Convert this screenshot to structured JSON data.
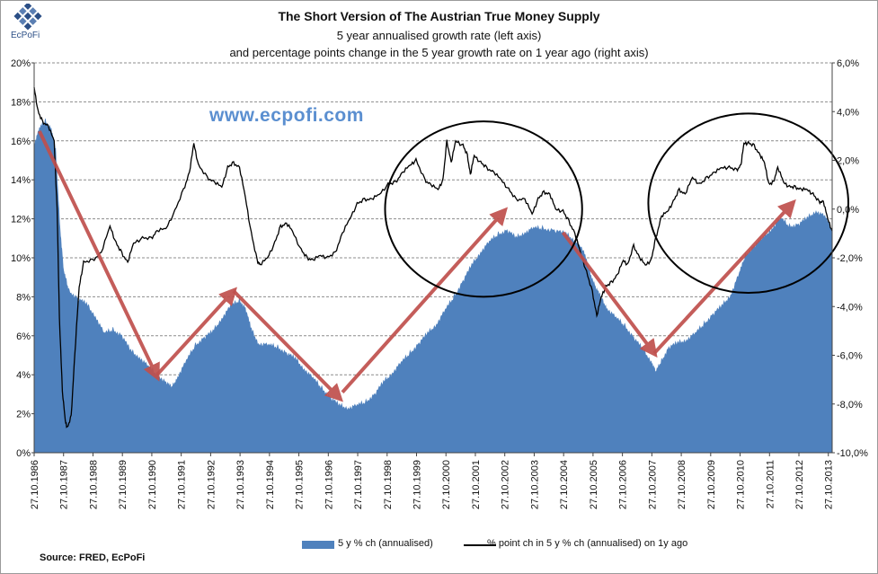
{
  "header": {
    "logo_text": "EcPoFi",
    "watermark": "www.ecpofi.com",
    "source": "Source: FRED, EcPoFi"
  },
  "chart_data": {
    "type": "area",
    "title": "The Short Version of The Austrian True Money Supply",
    "subtitle1": "5 year annualised growth rate (left axis)",
    "subtitle2": "and percentage points change in the 5 year growth rate on 1 year ago (right axis)",
    "x_labels": [
      "27.10.1986",
      "27.10.1987",
      "27.10.1988",
      "27.10.1989",
      "27.10.1990",
      "27.10.1991",
      "27.10.1992",
      "27.10.1993",
      "27.10.1994",
      "27.10.1995",
      "27.10.1996",
      "27.10.1997",
      "27.10.1998",
      "27.10.1999",
      "27.10.2000",
      "27.10.2001",
      "27.10.2002",
      "27.10.2003",
      "27.10.2004",
      "27.10.2005",
      "27.10.2006",
      "27.10.2007",
      "27.10.2008",
      "27.10.2009",
      "27.10.2010",
      "27.10.2011",
      "27.10.2012",
      "27.10.2013"
    ],
    "xlim": [
      1986.82,
      2013.95
    ],
    "y_left": {
      "min": 0,
      "max": 20,
      "step": 2,
      "unit": "%",
      "ticks": [
        "0%",
        "2%",
        "4%",
        "6%",
        "8%",
        "10%",
        "12%",
        "14%",
        "16%",
        "18%",
        "20%"
      ]
    },
    "y_right": {
      "min": -10,
      "max": 6,
      "step": 2,
      "unit": "%",
      "ticks": [
        "-10,0%",
        "-8,0%",
        "-6,0%",
        "-4,0%",
        "-2,0%",
        "0,0%",
        "2,0%",
        "4,0%",
        "6,0%"
      ]
    },
    "grid": true,
    "legend_position": "bottom",
    "series": [
      {
        "name": "5 y % ch (annualised)",
        "axis": "left",
        "kind": "area",
        "color": "#4f81bd",
        "points": [
          [
            1986.82,
            15.8
          ],
          [
            1987.0,
            16.6
          ],
          [
            1987.2,
            17.0
          ],
          [
            1987.4,
            16.6
          ],
          [
            1987.55,
            15.5
          ],
          [
            1987.7,
            11.5
          ],
          [
            1987.82,
            9.3
          ],
          [
            1988.0,
            8.3
          ],
          [
            1988.3,
            7.9
          ],
          [
            1988.6,
            7.6
          ],
          [
            1988.9,
            7.0
          ],
          [
            1989.2,
            6.1
          ],
          [
            1989.5,
            6.3
          ],
          [
            1989.8,
            6.0
          ],
          [
            1990.1,
            5.2
          ],
          [
            1990.4,
            4.9
          ],
          [
            1990.7,
            4.4
          ],
          [
            1991.0,
            4.0
          ],
          [
            1991.3,
            3.6
          ],
          [
            1991.5,
            3.3
          ],
          [
            1991.7,
            3.9
          ],
          [
            1992.0,
            4.7
          ],
          [
            1992.3,
            5.5
          ],
          [
            1992.6,
            5.9
          ],
          [
            1992.9,
            6.2
          ],
          [
            1993.2,
            6.9
          ],
          [
            1993.5,
            7.5
          ],
          [
            1993.8,
            7.8
          ],
          [
            1994.0,
            7.4
          ],
          [
            1994.2,
            6.3
          ],
          [
            1994.45,
            5.6
          ],
          [
            1994.8,
            5.5
          ],
          [
            1995.1,
            5.4
          ],
          [
            1995.4,
            5.1
          ],
          [
            1995.7,
            4.8
          ],
          [
            1996.0,
            4.3
          ],
          [
            1996.3,
            3.8
          ],
          [
            1996.6,
            3.3
          ],
          [
            1996.9,
            2.8
          ],
          [
            1997.2,
            2.4
          ],
          [
            1997.5,
            2.3
          ],
          [
            1997.8,
            2.4
          ],
          [
            1998.1,
            2.6
          ],
          [
            1998.4,
            3.0
          ],
          [
            1998.7,
            3.6
          ],
          [
            1999.0,
            4.1
          ],
          [
            1999.3,
            4.6
          ],
          [
            1999.6,
            5.1
          ],
          [
            1999.9,
            5.6
          ],
          [
            2000.2,
            6.1
          ],
          [
            2000.5,
            6.6
          ],
          [
            2000.8,
            7.3
          ],
          [
            2001.1,
            8.0
          ],
          [
            2001.4,
            8.8
          ],
          [
            2001.7,
            9.6
          ],
          [
            2002.0,
            10.3
          ],
          [
            2002.3,
            10.8
          ],
          [
            2002.6,
            11.2
          ],
          [
            2002.9,
            11.4
          ],
          [
            2003.2,
            11.0
          ],
          [
            2003.5,
            11.3
          ],
          [
            2003.8,
            11.5
          ],
          [
            2004.1,
            11.5
          ],
          [
            2004.5,
            11.4
          ],
          [
            2004.9,
            11.2
          ],
          [
            2005.2,
            10.9
          ],
          [
            2005.5,
            10.3
          ],
          [
            2005.7,
            9.3
          ],
          [
            2005.9,
            8.5
          ],
          [
            2006.1,
            7.9
          ],
          [
            2006.3,
            7.4
          ],
          [
            2006.6,
            6.9
          ],
          [
            2006.9,
            6.5
          ],
          [
            2007.2,
            5.9
          ],
          [
            2007.5,
            5.3
          ],
          [
            2007.8,
            4.7
          ],
          [
            2007.95,
            4.1
          ],
          [
            2008.15,
            4.7
          ],
          [
            2008.4,
            5.4
          ],
          [
            2008.7,
            5.6
          ],
          [
            2009.0,
            5.8
          ],
          [
            2009.3,
            6.1
          ],
          [
            2009.6,
            6.6
          ],
          [
            2009.9,
            7.1
          ],
          [
            2010.2,
            7.5
          ],
          [
            2010.5,
            8.1
          ],
          [
            2010.8,
            9.2
          ],
          [
            2011.0,
            10.1
          ],
          [
            2011.3,
            10.6
          ],
          [
            2011.6,
            11.0
          ],
          [
            2011.9,
            11.5
          ],
          [
            2012.2,
            12.0
          ],
          [
            2012.5,
            11.6
          ],
          [
            2012.8,
            11.7
          ],
          [
            2013.1,
            12.0
          ],
          [
            2013.4,
            12.4
          ],
          [
            2013.7,
            12.1
          ],
          [
            2013.95,
            11.4
          ]
        ]
      },
      {
        "name": "% point ch in 5 y % ch (annualised) on 1y ago",
        "axis": "right",
        "kind": "line",
        "color": "#000000",
        "points": [
          [
            1986.82,
            5.0
          ],
          [
            1986.95,
            4.0
          ],
          [
            1987.1,
            3.6
          ],
          [
            1987.3,
            3.4
          ],
          [
            1987.5,
            2.8
          ],
          [
            1987.6,
            0.0
          ],
          [
            1987.68,
            -4.5
          ],
          [
            1987.78,
            -7.5
          ],
          [
            1987.88,
            -8.7
          ],
          [
            1987.95,
            -9.0
          ],
          [
            1988.08,
            -8.5
          ],
          [
            1988.2,
            -6.0
          ],
          [
            1988.35,
            -3.2
          ],
          [
            1988.5,
            -2.2
          ],
          [
            1988.8,
            -2.1
          ],
          [
            1989.1,
            -1.8
          ],
          [
            1989.4,
            -0.7
          ],
          [
            1989.6,
            -1.4
          ],
          [
            1989.8,
            -1.8
          ],
          [
            1990.0,
            -2.2
          ],
          [
            1990.2,
            -1.4
          ],
          [
            1990.5,
            -1.2
          ],
          [
            1990.8,
            -1.2
          ],
          [
            1991.0,
            -0.9
          ],
          [
            1991.3,
            -0.8
          ],
          [
            1991.6,
            -0.1
          ],
          [
            1991.9,
            0.8
          ],
          [
            1992.1,
            1.5
          ],
          [
            1992.25,
            2.7
          ],
          [
            1992.4,
            1.8
          ],
          [
            1992.7,
            1.3
          ],
          [
            1992.95,
            1.1
          ],
          [
            1993.2,
            0.9
          ],
          [
            1993.4,
            1.7
          ],
          [
            1993.6,
            1.9
          ],
          [
            1993.8,
            1.7
          ],
          [
            1994.0,
            0.5
          ],
          [
            1994.2,
            -1.0
          ],
          [
            1994.4,
            -2.1
          ],
          [
            1994.5,
            -2.3
          ],
          [
            1994.75,
            -2.0
          ],
          [
            1995.0,
            -1.4
          ],
          [
            1995.2,
            -0.7
          ],
          [
            1995.4,
            -0.6
          ],
          [
            1995.6,
            -0.9
          ],
          [
            1995.9,
            -1.7
          ],
          [
            1996.1,
            -2.0
          ],
          [
            1996.3,
            -2.1
          ],
          [
            1996.55,
            -1.9
          ],
          [
            1996.8,
            -2.0
          ],
          [
            1997.05,
            -1.8
          ],
          [
            1997.3,
            -1.0
          ],
          [
            1997.55,
            -0.4
          ],
          [
            1997.8,
            0.2
          ],
          [
            1998.05,
            0.4
          ],
          [
            1998.3,
            0.4
          ],
          [
            1998.55,
            0.6
          ],
          [
            1998.85,
            1.0
          ],
          [
            1999.1,
            1.1
          ],
          [
            1999.35,
            1.5
          ],
          [
            1999.6,
            1.8
          ],
          [
            1999.8,
            2.0
          ],
          [
            2000.1,
            1.2
          ],
          [
            2000.3,
            1.0
          ],
          [
            2000.55,
            0.8
          ],
          [
            2000.72,
            1.2
          ],
          [
            2000.85,
            2.8
          ],
          [
            2001.0,
            1.9
          ],
          [
            2001.15,
            2.8
          ],
          [
            2001.4,
            2.6
          ],
          [
            2001.55,
            2.2
          ],
          [
            2001.65,
            1.4
          ],
          [
            2001.78,
            2.2
          ],
          [
            2002.0,
            1.9
          ],
          [
            2002.2,
            1.7
          ],
          [
            2002.45,
            1.5
          ],
          [
            2002.7,
            1.2
          ],
          [
            2002.95,
            0.8
          ],
          [
            2003.2,
            0.4
          ],
          [
            2003.5,
            0.4
          ],
          [
            2003.75,
            -0.2
          ],
          [
            2003.95,
            0.4
          ],
          [
            2004.15,
            0.7
          ],
          [
            2004.35,
            0.6
          ],
          [
            2004.55,
            0.0
          ],
          [
            2004.8,
            -0.1
          ],
          [
            2005.0,
            -0.5
          ],
          [
            2005.2,
            -1.0
          ],
          [
            2005.4,
            -1.8
          ],
          [
            2005.6,
            -2.6
          ],
          [
            2005.8,
            -3.4
          ],
          [
            2005.95,
            -4.4
          ],
          [
            2006.1,
            -3.6
          ],
          [
            2006.25,
            -3.2
          ],
          [
            2006.45,
            -3.0
          ],
          [
            2006.65,
            -2.7
          ],
          [
            2006.85,
            -2.1
          ],
          [
            2007.0,
            -2.3
          ],
          [
            2007.2,
            -1.5
          ],
          [
            2007.4,
            -2.0
          ],
          [
            2007.6,
            -2.3
          ],
          [
            2007.8,
            -2.1
          ],
          [
            2007.95,
            -1.2
          ],
          [
            2008.15,
            -0.3
          ],
          [
            2008.35,
            -0.1
          ],
          [
            2008.55,
            0.3
          ],
          [
            2008.75,
            0.8
          ],
          [
            2008.95,
            0.6
          ],
          [
            2009.2,
            1.3
          ],
          [
            2009.45,
            1.0
          ],
          [
            2009.7,
            1.3
          ],
          [
            2009.95,
            1.5
          ],
          [
            2010.2,
            1.7
          ],
          [
            2010.45,
            1.7
          ],
          [
            2010.7,
            1.6
          ],
          [
            2010.85,
            1.8
          ],
          [
            2010.95,
            2.7
          ],
          [
            2011.1,
            2.7
          ],
          [
            2011.3,
            2.6
          ],
          [
            2011.5,
            2.2
          ],
          [
            2011.65,
            1.9
          ],
          [
            2011.8,
            1.0
          ],
          [
            2011.95,
            1.1
          ],
          [
            2012.1,
            1.7
          ],
          [
            2012.3,
            1.1
          ],
          [
            2012.5,
            0.9
          ],
          [
            2012.7,
            0.9
          ],
          [
            2012.9,
            0.8
          ],
          [
            2013.1,
            0.8
          ],
          [
            2013.3,
            0.6
          ],
          [
            2013.5,
            0.3
          ],
          [
            2013.65,
            0.3
          ],
          [
            2013.8,
            -0.4
          ],
          [
            2013.95,
            -0.9
          ]
        ]
      }
    ],
    "annotations": {
      "arrows": [
        {
          "from": [
            1987.0,
            16.5
          ],
          "to": [
            1991.0,
            3.9
          ]
        },
        {
          "from": [
            1991.0,
            4.0
          ],
          "to": [
            1993.6,
            8.3
          ]
        },
        {
          "from": [
            1993.6,
            8.3
          ],
          "to": [
            1997.2,
            2.8
          ]
        },
        {
          "from": [
            1997.3,
            3.1
          ],
          "to": [
            2002.8,
            12.4
          ]
        },
        {
          "from": [
            2004.8,
            11.3
          ],
          "to": [
            2007.9,
            5.1
          ]
        },
        {
          "from": [
            2007.9,
            5.1
          ],
          "to": [
            2012.6,
            12.8
          ]
        }
      ],
      "circles": [
        {
          "cx": 2002.1,
          "cy": 12.5,
          "rx": 3.35,
          "ry": 4.5
        },
        {
          "cx": 2011.1,
          "cy": 12.8,
          "rx": 3.4,
          "ry": 4.6
        }
      ]
    }
  }
}
